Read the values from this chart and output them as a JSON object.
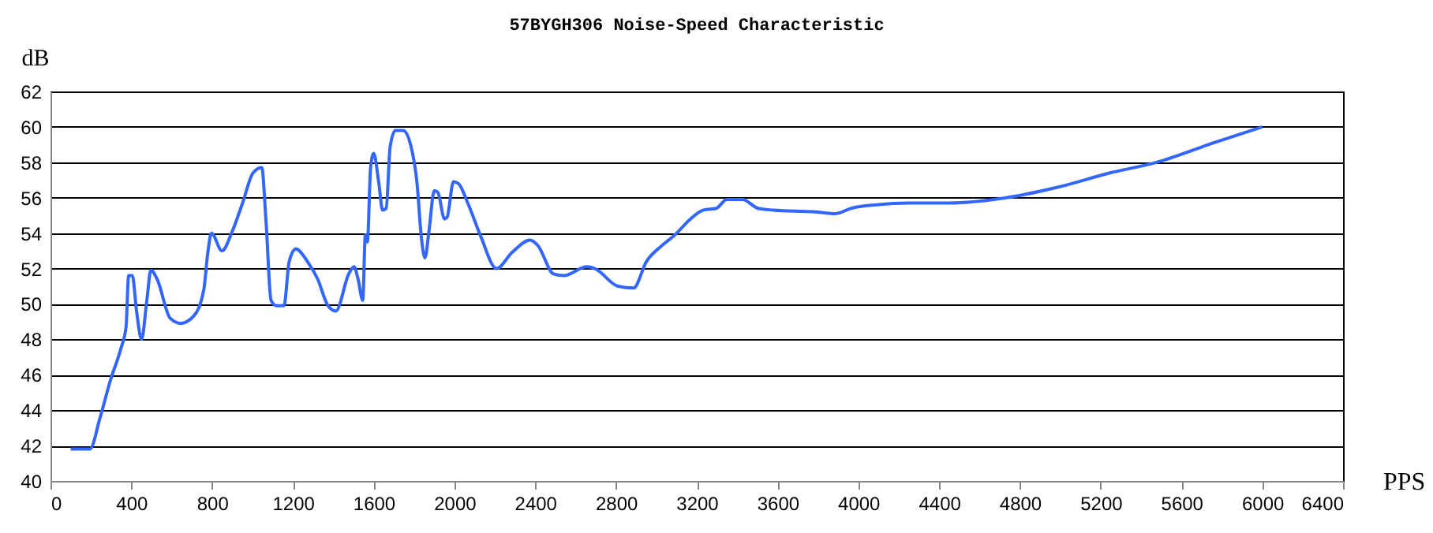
{
  "chart_data": {
    "type": "line",
    "title": "57BYGH306 Noise-Speed Characteristic",
    "xlabel": "PPS",
    "ylabel": "dB",
    "xlim": [
      0,
      6400
    ],
    "xticks": [
      0,
      400,
      800,
      1200,
      1600,
      2000,
      2400,
      2800,
      3200,
      3600,
      4000,
      4400,
      4800,
      5200,
      5600,
      6000,
      6400
    ],
    "ylim": [
      40,
      62
    ],
    "yticks": [
      40,
      42,
      44,
      46,
      48,
      50,
      52,
      54,
      56,
      58,
      60,
      62
    ],
    "grid": "y",
    "line_style": "solid",
    "series": [
      {
        "color": "#3366ff",
        "x": [
          100,
          195,
          246,
          297,
          349,
          374,
          387,
          405,
          426,
          451,
          477,
          497,
          528,
          592,
          644,
          708,
          759,
          779,
          797,
          849,
          900,
          951,
          1003,
          1046,
          1067,
          1092,
          1118,
          1156,
          1182,
          1215,
          1272,
          1323,
          1374,
          1413,
          1477,
          1503,
          1523,
          1546,
          1559,
          1569,
          1585,
          1600,
          1626,
          1644,
          1662,
          1682,
          1708,
          1746,
          1785,
          1815,
          1836,
          1854,
          1874,
          1900,
          1918,
          1951,
          1964,
          1995,
          2020,
          2066,
          2131,
          2208,
          2285,
          2374,
          2413,
          2490,
          2541,
          2656,
          2695,
          2810,
          2887,
          2951,
          3028,
          3092,
          3169,
          3233,
          3297,
          3349,
          3426,
          3503,
          3579,
          3785,
          3887,
          3964,
          4092,
          4246,
          4451,
          4733,
          4990,
          5246,
          5477,
          5759,
          6000
        ],
        "values": [
          41.8,
          41.8,
          43.6,
          45.7,
          47.5,
          48.7,
          51.6,
          51.6,
          49.6,
          48,
          50.2,
          51.9,
          51.4,
          49.2,
          48.9,
          49.3,
          50.8,
          52.9,
          54,
          53,
          54.1,
          55.7,
          57.4,
          57.7,
          54.7,
          50.2,
          49.9,
          49.9,
          52.4,
          53.1,
          52.4,
          51.4,
          49.9,
          49.6,
          51.7,
          52.1,
          51.4,
          50.2,
          53.9,
          53.5,
          57.7,
          58.5,
          56.8,
          55.3,
          55.4,
          58.9,
          59.8,
          59.8,
          58.9,
          56.8,
          53.8,
          52.6,
          54.1,
          56.4,
          56.3,
          54.8,
          54.9,
          56.9,
          56.8,
          55.7,
          53.8,
          52,
          52.9,
          53.6,
          53.3,
          51.7,
          51.6,
          52.1,
          52,
          51,
          50.9,
          52.4,
          53.3,
          53.9,
          54.8,
          55.3,
          55.4,
          55.9,
          55.9,
          55.4,
          55.3,
          55.2,
          55.1,
          55.4,
          55.6,
          55.7,
          55.7,
          56,
          56.6,
          57.4,
          58,
          59.1,
          60
        ]
      }
    ]
  }
}
